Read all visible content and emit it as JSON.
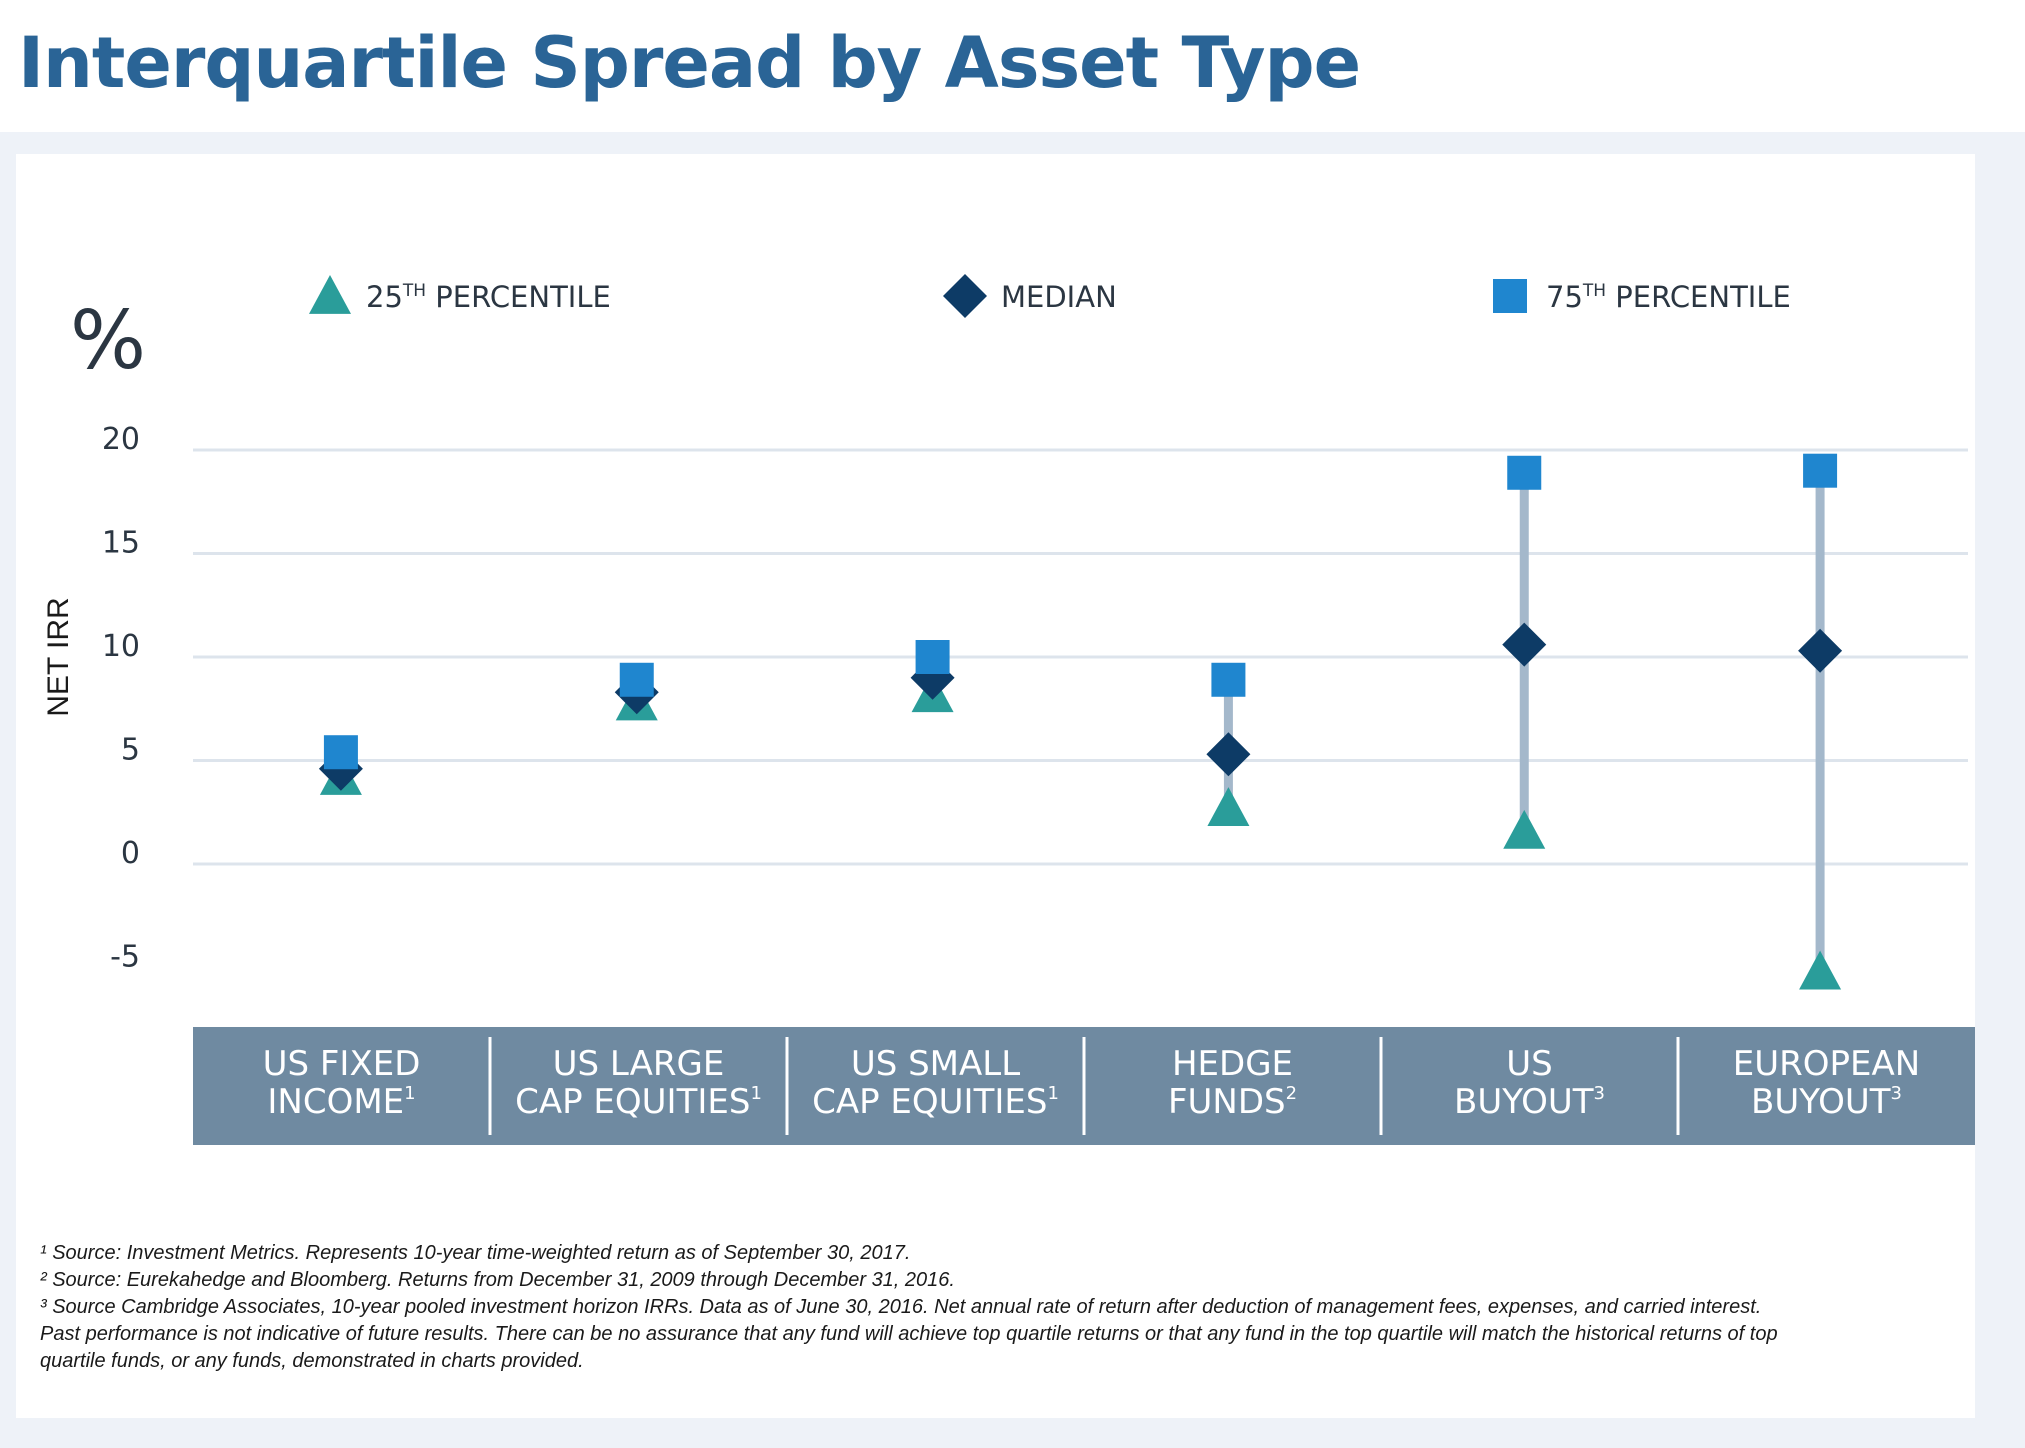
{
  "page": {
    "title": "Interquartile Spread by Asset Type"
  },
  "chart_data": {
    "type": "scatter",
    "title": "",
    "unit_label": "%",
    "ylabel": "NET IRR",
    "ylim": [
      -5,
      20
    ],
    "yticks": [
      "20",
      "15",
      "10",
      "5",
      "0",
      "-5"
    ],
    "ytick_values": [
      20,
      15,
      10,
      5,
      0,
      -5
    ],
    "grid": true,
    "legend_position": "top",
    "categories": [
      {
        "line1": "US FIXED",
        "line2": "INCOME",
        "sup": "1"
      },
      {
        "line1": "US LARGE",
        "line2": "CAP EQUITIES",
        "sup": "1"
      },
      {
        "line1": "US SMALL",
        "line2": "CAP EQUITIES",
        "sup": "1"
      },
      {
        "line1": "HEDGE",
        "line2": "FUNDS",
        "sup": "2"
      },
      {
        "line1": "US",
        "line2": "BUYOUT",
        "sup": "3"
      },
      {
        "line1": "EUROPEAN",
        "line2": "BUYOUT",
        "sup": "3"
      }
    ],
    "series": [
      {
        "name": "25TH PERCENTILE",
        "legend_main": "25",
        "legend_sup": "TH",
        "legend_rest": " PERCENTILE",
        "marker": "triangle",
        "color": "#2a9d9a",
        "values": [
          4.2,
          7.8,
          8.2,
          2.7,
          1.6,
          -5.2
        ]
      },
      {
        "name": "MEDIAN",
        "legend_main": "MEDIAN",
        "legend_sup": "",
        "legend_rest": "",
        "marker": "diamond",
        "color": "#0d3b66",
        "values": [
          4.6,
          8.3,
          9.0,
          5.3,
          10.6,
          10.3
        ]
      },
      {
        "name": "75TH PERCENTILE",
        "legend_main": "75",
        "legend_sup": "TH",
        "legend_rest": " PERCENTILE",
        "marker": "square",
        "color": "#1f86cf",
        "values": [
          5.4,
          8.9,
          10.0,
          8.9,
          18.9,
          19.0
        ]
      }
    ],
    "colors": {
      "range_line": "#a4b8cb",
      "category_band": "#6f8aa1",
      "gridline": "#dde4ec",
      "axis_text": "#2b3642"
    }
  },
  "footnotes": [
    "¹ Source: Investment Metrics. Represents 10-year time-weighted return as of September 30, 2017.",
    "² Source: Eurekahedge and Bloomberg. Returns from December 31, 2009 through December 31, 2016.",
    "³ Source Cambridge Associates, 10-year pooled investment horizon IRRs. Data as of June 30, 2016. Net annual rate of return after deduction of management fees, expenses, and carried interest.",
    "Past performance is not indicative of future results. There can be no assurance that any fund will achieve top quartile returns or that any fund in the top quartile will match the historical returns of top",
    "quartile funds, or any funds, demonstrated in charts provided."
  ]
}
